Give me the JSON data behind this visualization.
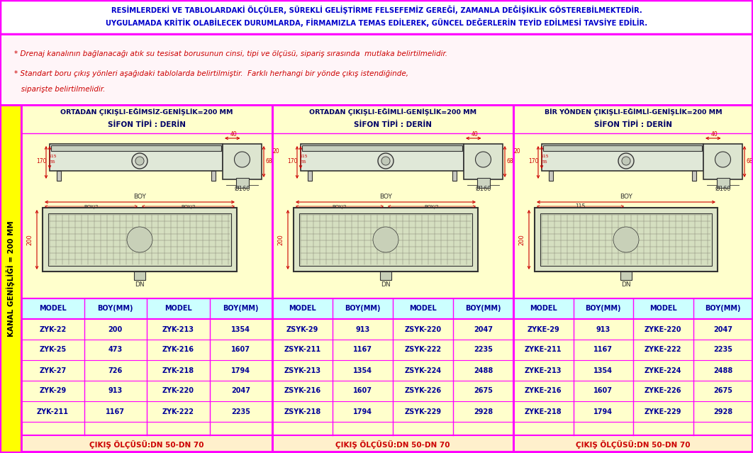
{
  "title_line1": "RESİMLERDEKİ VE TABLOLARDAKİ ÖLÇÜLER, SÜREKLİ GELİŞTİRME FELSEFEMİZ GEREĞİ, ZAMANLA DEĞİŞİKLİK GÖSTEREBİLMEKTEDİR.",
  "title_line2": "UYGULAMADA KRİTİK OLABİLECEK DURUMLARDA, FİRMAMIZLA TEMAS EDİLEREK, GÜNCEL DEĞERLERİN TEYİD EDİLMESİ TAVSİYE EDİLİR.",
  "note1": "* Drenaj kanalının bağlanacağı atık su tesisat borusunun cinsi, tipi ve ölçüsü, sipariş sırasında  mutlaka belirtilmelidir.",
  "note2": "* Standart boru çıkış yönleri aşağıdaki tablolarda belirtilmiştir.  Farklı herhangi bir yönde çıkış istendiğinde,",
  "note3": "   siparişte belirtilmelidir.",
  "section1_title": "ORTADAN ÇIKIŞLI-EĞİMSİZ-GENİŞLİK=200 MM",
  "section1_subtitle": "SİFON TİPİ : DERİN",
  "section2_title": "ORTADAN ÇIKIŞLI-EĞİMLİ-GENİŞLİK=200 MM",
  "section2_subtitle": "SİFON TİPİ : DERİN",
  "section3_title": "BİR YÖNDEN ÇIKIŞLI-EĞİMLİ-GENİŞLİK=200 MM",
  "section3_subtitle": "SİFON TİPİ : DERİN",
  "kanal_label": "KANAL GENİŞLİĞİ = 200 MM",
  "table_headers": [
    "MODEL",
    "BOY(MM)",
    "MODEL",
    "BOY(MM)"
  ],
  "sec1_data": [
    [
      "ZYK-22",
      "200",
      "ZYK-213",
      "1354"
    ],
    [
      "ZYK-25",
      "473",
      "ZYK-216",
      "1607"
    ],
    [
      "ZYK-27",
      "726",
      "ZYK-218",
      "1794"
    ],
    [
      "ZYK-29",
      "913",
      "ZYK-220",
      "2047"
    ],
    [
      "ZYK-211",
      "1167",
      "ZYK-222",
      "2235"
    ]
  ],
  "sec2_data": [
    [
      "ZSYK-29",
      "913",
      "ZSYK-220",
      "2047"
    ],
    [
      "ZSYK-211",
      "1167",
      "ZSYK-222",
      "2235"
    ],
    [
      "ZSYK-213",
      "1354",
      "ZSYK-224",
      "2488"
    ],
    [
      "ZSYK-216",
      "1607",
      "ZSYK-226",
      "2675"
    ],
    [
      "ZSYK-218",
      "1794",
      "ZSYK-229",
      "2928"
    ]
  ],
  "sec3_data": [
    [
      "ZYKE-29",
      "913",
      "ZYKE-220",
      "2047"
    ],
    [
      "ZYKE-211",
      "1167",
      "ZYKE-222",
      "2235"
    ],
    [
      "ZYKE-213",
      "1354",
      "ZYKE-224",
      "2488"
    ],
    [
      "ZYKE-216",
      "1607",
      "ZYKE-226",
      "2675"
    ],
    [
      "ZYKE-218",
      "1794",
      "ZYKE-229",
      "2928"
    ]
  ],
  "footer": "ÇIKIŞ ÖLÇÜSÜ:DN 50-DN 70",
  "bg_color": "#ffffcc",
  "header_bg": "#ccffff",
  "title_bg": "#ffffff",
  "border_color": "#ff00ff",
  "title_color": "#0000cc",
  "note_color": "#cc0000",
  "section_title_color": "#000066",
  "table_header_color": "#000099",
  "table_data_color": "#000099",
  "footer_color": "#cc0000",
  "yellow_sidebar": "#ffff00",
  "kanal_color": "#000000",
  "dim_color": "#cc0000",
  "draw_color": "#333333",
  "draw_fill": "#e8eecc"
}
